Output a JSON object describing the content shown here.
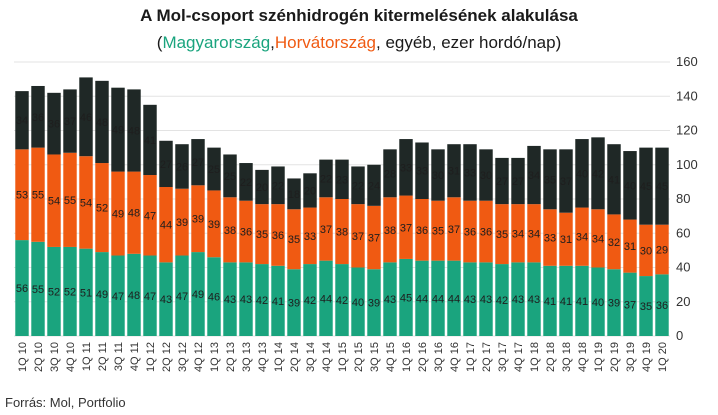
{
  "title": "A Mol-csoport szénhidrogén kitermelésének alakulása",
  "subtitle": {
    "open": "(",
    "hu": "Magyarország",
    "comma": ",",
    "hr": "Horvátország",
    "rest": ", egyéb, ezer hordó/nap)"
  },
  "source": "Forrás: Mol, Portfolio",
  "colors": {
    "hungary": "#1aa47e",
    "croatia": "#f05a12",
    "other": "#1f2826"
  },
  "chart_data": {
    "type": "bar",
    "stacked": true,
    "ylim": [
      0,
      160
    ],
    "yticks": [
      0,
      20,
      40,
      60,
      80,
      100,
      120,
      140,
      160
    ],
    "y_axis_position": "right",
    "grid": true,
    "categories": [
      "1Q 10",
      "2Q 10",
      "3Q 10",
      "4Q 10",
      "1Q 11",
      "2Q 11",
      "3Q 11",
      "4Q 11",
      "1Q 12",
      "2Q 12",
      "3Q 12",
      "4Q 12",
      "1Q 13",
      "2Q 13",
      "3Q 13",
      "4Q 13",
      "1Q 14",
      "2Q 14",
      "3Q 14",
      "4Q 14",
      "1Q 15",
      "2Q 15",
      "3Q 15",
      "4Q 15",
      "1Q 16",
      "2Q 16",
      "3Q 16",
      "4Q 16",
      "1Q 17",
      "2Q 17",
      "3Q 17",
      "4Q 17",
      "1Q 18",
      "2Q 18",
      "3Q 18",
      "4Q 18",
      "1Q 19",
      "2Q 19",
      "3Q 19",
      "4Q 19",
      "1Q 20"
    ],
    "series": [
      {
        "name": "Magyarország",
        "values": [
          56,
          55,
          52,
          52,
          51,
          49,
          47,
          48,
          47,
          43,
          47,
          49,
          46,
          43,
          43,
          42,
          41,
          39,
          42,
          44,
          42,
          40,
          39,
          43,
          45,
          44,
          44,
          44,
          43,
          43,
          42,
          43,
          43,
          41,
          41,
          41,
          40,
          39,
          37,
          35,
          36
        ]
      },
      {
        "name": "Horvátország",
        "values": [
          53,
          55,
          54,
          55,
          54,
          52,
          49,
          48,
          47,
          44,
          39,
          39,
          39,
          38,
          36,
          35,
          36,
          35,
          33,
          37,
          38,
          37,
          37,
          38,
          37,
          36,
          35,
          37,
          36,
          36,
          35,
          34,
          34,
          33,
          31,
          34,
          34,
          32,
          31,
          30,
          29
        ]
      },
      {
        "name": "egyéb",
        "values": [
          34,
          36,
          36,
          37,
          46,
          48,
          49,
          48,
          41,
          27,
          26,
          27,
          25,
          25,
          22,
          20,
          22,
          18,
          20,
          22,
          23,
          22,
          24,
          28,
          33,
          33,
          30,
          31,
          33,
          30,
          27,
          27,
          34,
          35,
          37,
          40,
          42,
          41,
          40,
          45,
          45
        ]
      }
    ]
  }
}
